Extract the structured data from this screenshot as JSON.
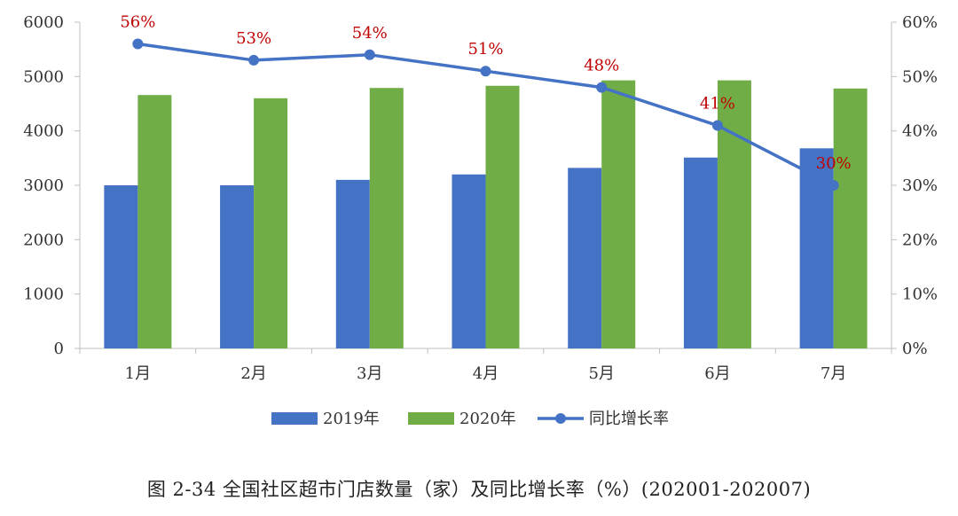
{
  "chart_data": {
    "type": "bar",
    "categories": [
      "1月",
      "2月",
      "3月",
      "4月",
      "5月",
      "6月",
      "7月"
    ],
    "series": [
      {
        "name": "2019年",
        "kind": "bar",
        "axis": "left",
        "color": "#4472C4",
        "values": [
          3000,
          3000,
          3100,
          3200,
          3320,
          3510,
          3680
        ]
      },
      {
        "name": "2020年",
        "kind": "bar",
        "axis": "left",
        "color": "#70AD47",
        "values": [
          4660,
          4600,
          4790,
          4830,
          4930,
          4930,
          4780
        ]
      },
      {
        "name": "同比增长率",
        "kind": "line",
        "axis": "right",
        "color": "#4472C4",
        "values": [
          56,
          53,
          54,
          51,
          48,
          41,
          30
        ],
        "labels": [
          "56%",
          "53%",
          "54%",
          "51%",
          "48%",
          "41%",
          "30%"
        ]
      }
    ],
    "ylim_left": [
      0,
      6000
    ],
    "yticks_left": [
      "0",
      "1000",
      "2000",
      "3000",
      "4000",
      "5000",
      "6000"
    ],
    "ylim_right": [
      0,
      60
    ],
    "yticks_right": [
      "0%",
      "10%",
      "20%",
      "30%",
      "40%",
      "50%",
      "60%"
    ],
    "grid": false,
    "legend_position": "bottom",
    "data_label_color": "#C00000",
    "title": "图 2-34 全国社区超市门店数量（家）及同比增长率（%）(202001-202007)"
  }
}
